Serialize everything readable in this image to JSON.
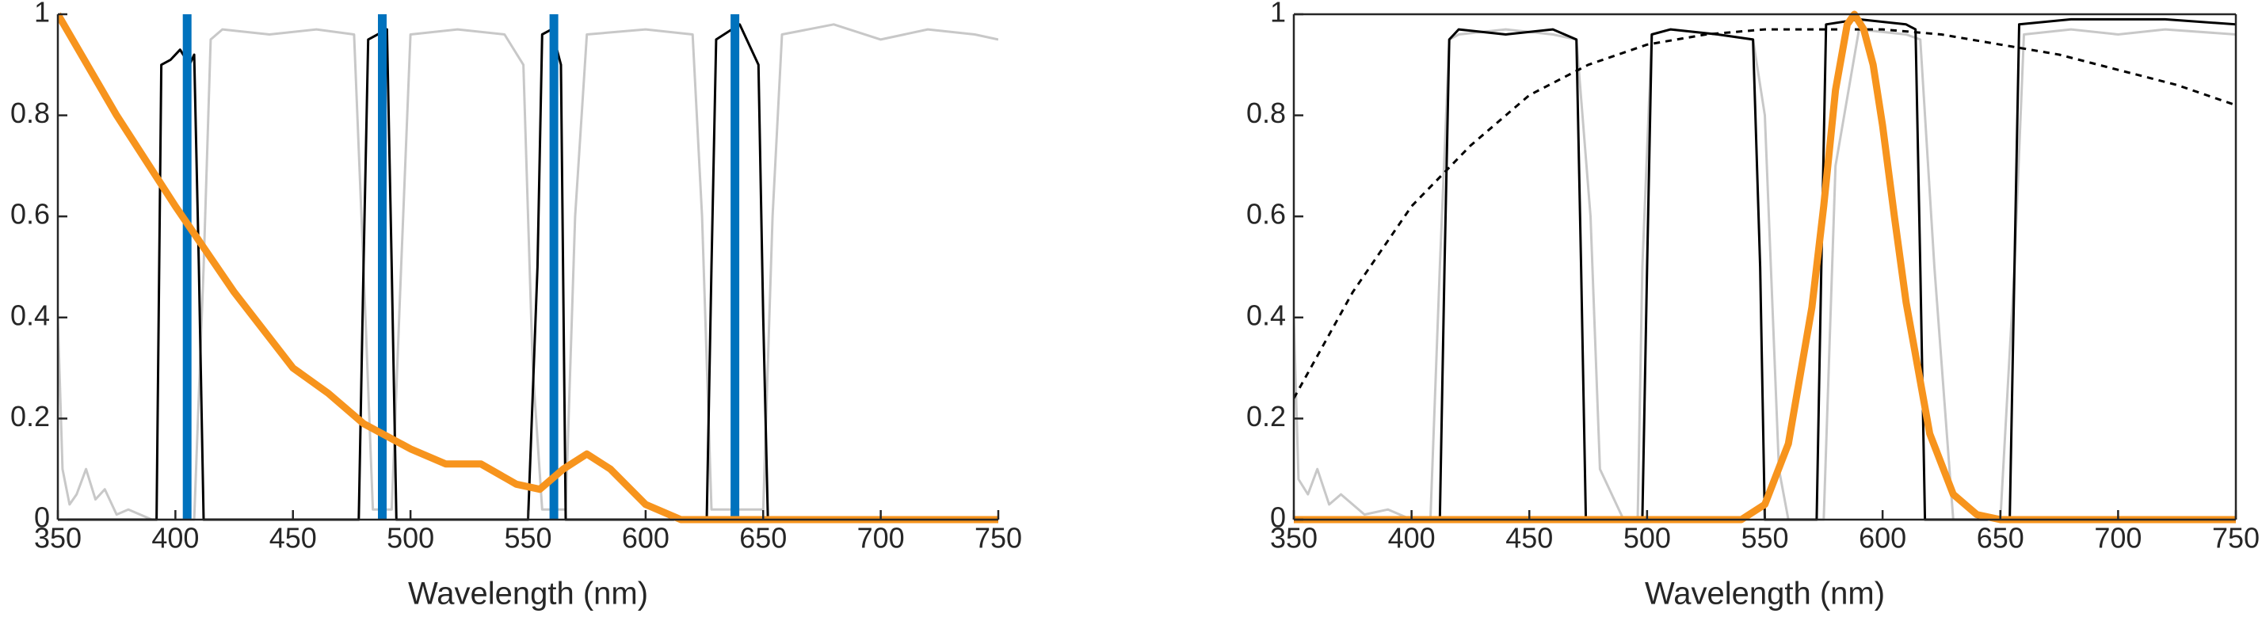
{
  "chart_data": [
    {
      "type": "line",
      "xlabel": "Wavelength (nm)",
      "xlim": [
        350,
        750
      ],
      "ylim": [
        0,
        1
      ],
      "xticks": [
        350,
        400,
        450,
        500,
        550,
        600,
        650,
        700,
        750
      ],
      "yticks": [
        0,
        0.2,
        0.4,
        0.6,
        0.8,
        1
      ],
      "box": false,
      "series": [
        {
          "color": "#c8c8c8",
          "width": 3,
          "x": [
            350,
            352,
            355,
            358,
            362,
            366,
            370,
            375,
            380,
            390,
            400,
            408,
            412,
            415,
            420,
            440,
            460,
            476,
            480,
            484,
            492,
            496,
            500,
            520,
            540,
            548,
            552,
            556,
            566,
            570,
            575,
            600,
            620,
            624,
            628,
            650,
            654,
            658,
            680,
            700,
            720,
            740,
            750
          ],
          "values": [
            0.4,
            0.1,
            0.03,
            0.05,
            0.1,
            0.04,
            0.06,
            0.01,
            0.02,
            0,
            0,
            0,
            0.5,
            0.95,
            0.97,
            0.96,
            0.97,
            0.96,
            0.5,
            0.02,
            0.02,
            0.5,
            0.96,
            0.97,
            0.96,
            0.9,
            0.3,
            0.02,
            0.02,
            0.6,
            0.96,
            0.97,
            0.96,
            0.6,
            0.02,
            0.02,
            0.6,
            0.96,
            0.98,
            0.95,
            0.97,
            0.96,
            0.95
          ]
        },
        {
          "color": "#000000",
          "width": 3,
          "x": [
            350,
            392,
            394,
            398,
            402,
            406,
            408,
            410,
            412,
            478,
            480,
            482,
            486,
            490,
            492,
            494,
            550,
            554,
            556,
            560,
            564,
            566,
            626,
            628,
            630,
            640,
            648,
            650,
            652,
            750
          ],
          "values": [
            0,
            0,
            0.9,
            0.91,
            0.93,
            0.9,
            0.92,
            0.5,
            0,
            0,
            0.5,
            0.95,
            0.96,
            0.97,
            0.5,
            0,
            0,
            0.5,
            0.96,
            0.97,
            0.9,
            0,
            0,
            0.5,
            0.95,
            0.98,
            0.9,
            0.4,
            0,
            0
          ]
        },
        {
          "color": "#0072bd",
          "width": 11,
          "x": [
            405,
            405
          ],
          "values": [
            0,
            1
          ]
        },
        {
          "color": "#0072bd",
          "width": 11,
          "x": [
            488,
            488
          ],
          "values": [
            0,
            1
          ]
        },
        {
          "color": "#0072bd",
          "width": 11,
          "x": [
            561,
            561
          ],
          "values": [
            0,
            1
          ]
        },
        {
          "color": "#0072bd",
          "width": 11,
          "x": [
            638,
            638
          ],
          "values": [
            0,
            1
          ]
        },
        {
          "color": "#f7941d",
          "width": 9,
          "x": [
            350,
            375,
            400,
            425,
            450,
            465,
            480,
            500,
            515,
            530,
            545,
            555,
            565,
            575,
            585,
            600,
            615,
            630,
            750
          ],
          "values": [
            1,
            0.8,
            0.62,
            0.45,
            0.3,
            0.25,
            0.19,
            0.14,
            0.11,
            0.11,
            0.07,
            0.06,
            0.1,
            0.13,
            0.1,
            0.03,
            0,
            0,
            0
          ]
        }
      ]
    },
    {
      "type": "line",
      "xlabel": "Wavelength (nm)",
      "xlim": [
        350,
        750
      ],
      "ylim": [
        0,
        1
      ],
      "xticks": [
        350,
        400,
        450,
        500,
        550,
        600,
        650,
        700,
        750
      ],
      "yticks": [
        0,
        0.2,
        0.4,
        0.6,
        0.8,
        1
      ],
      "box": true,
      "series": [
        {
          "color": "#c8c8c8",
          "width": 3,
          "x": [
            350,
            352,
            356,
            360,
            365,
            370,
            380,
            390,
            400,
            408,
            412,
            416,
            420,
            440,
            460,
            470,
            476,
            480,
            490,
            496,
            498,
            502,
            510,
            530,
            545,
            550,
            556,
            560,
            575,
            580,
            590,
            610,
            616,
            622,
            630,
            650,
            656,
            660,
            680,
            700,
            720,
            750
          ],
          "values": [
            0.4,
            0.08,
            0.05,
            0.1,
            0.03,
            0.05,
            0.01,
            0.02,
            0,
            0,
            0.5,
            0.95,
            0.96,
            0.97,
            0.96,
            0.95,
            0.6,
            0.1,
            0,
            0,
            0.5,
            0.96,
            0.97,
            0.96,
            0.95,
            0.8,
            0.1,
            0,
            0,
            0.7,
            0.97,
            0.96,
            0.95,
            0.5,
            0,
            0,
            0.5,
            0.96,
            0.97,
            0.96,
            0.97,
            0.96
          ]
        },
        {
          "color": "#000000",
          "width": 3,
          "x": [
            350,
            412,
            414,
            416,
            420,
            440,
            460,
            470,
            472,
            474,
            498,
            500,
            502,
            510,
            530,
            545,
            548,
            550,
            572,
            574,
            576,
            590,
            610,
            614,
            616,
            618,
            654,
            656,
            658,
            680,
            720,
            750
          ],
          "values": [
            0,
            0,
            0.5,
            0.95,
            0.97,
            0.96,
            0.97,
            0.95,
            0.5,
            0,
            0,
            0.5,
            0.96,
            0.97,
            0.96,
            0.95,
            0.5,
            0,
            0,
            0.5,
            0.98,
            0.99,
            0.98,
            0.97,
            0.5,
            0,
            0,
            0.5,
            0.98,
            0.99,
            0.99,
            0.98
          ]
        },
        {
          "color": "#000000",
          "width": 3,
          "dash": true,
          "x": [
            350,
            375,
            400,
            425,
            450,
            475,
            500,
            525,
            550,
            575,
            600,
            625,
            650,
            675,
            700,
            725,
            750
          ],
          "values": [
            0.24,
            0.45,
            0.62,
            0.74,
            0.84,
            0.9,
            0.94,
            0.96,
            0.97,
            0.97,
            0.97,
            0.96,
            0.94,
            0.92,
            0.89,
            0.86,
            0.82
          ]
        },
        {
          "color": "#f7941d",
          "width": 9,
          "x": [
            350,
            540,
            550,
            560,
            570,
            575,
            580,
            585,
            588,
            592,
            596,
            600,
            605,
            610,
            620,
            630,
            640,
            650,
            750
          ],
          "values": [
            0,
            0,
            0.03,
            0.15,
            0.42,
            0.62,
            0.85,
            0.98,
            1,
            0.97,
            0.9,
            0.78,
            0.6,
            0.43,
            0.17,
            0.05,
            0.01,
            0,
            0
          ]
        }
      ]
    }
  ]
}
